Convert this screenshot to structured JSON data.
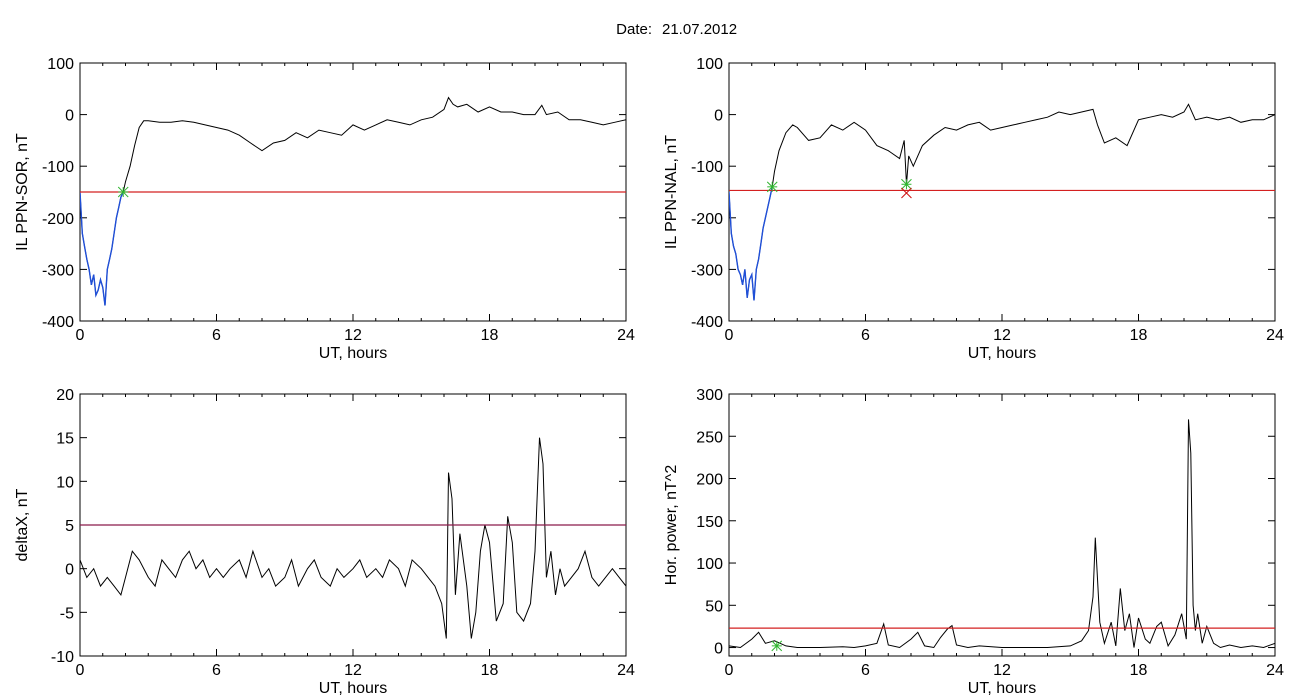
{
  "figure": {
    "date_label": "Date:",
    "date_value": "21.07.2012"
  },
  "colors": {
    "trace": "#000000",
    "highlight": "#1f4fd8",
    "threshold": "#d42020",
    "threshold_purple": "#8b1a4a",
    "marker_green": "#2fb52f",
    "marker_red": "#cc1111"
  },
  "chart_data": [
    {
      "id": "sor",
      "type": "line",
      "xlabel": "UT, hours",
      "ylabel": "IL PPN-SOR, nT",
      "xlim": [
        0,
        24
      ],
      "ylim": [
        -400,
        100
      ],
      "xticks": [
        0,
        6,
        12,
        18,
        24
      ],
      "yticks": [
        -400,
        -300,
        -200,
        -100,
        0,
        100
      ],
      "threshold": -150,
      "threshold_color": "red",
      "highlight_range": [
        0,
        1.9
      ],
      "markers": [
        {
          "x": 1.9,
          "y": -150,
          "shape": "asterisk",
          "color": "green"
        }
      ],
      "series": [
        {
          "x": [
            0.0,
            0.1,
            0.2,
            0.3,
            0.4,
            0.5,
            0.6,
            0.7,
            0.8,
            0.9,
            1.0,
            1.1,
            1.2,
            1.3,
            1.4,
            1.5,
            1.6,
            1.7,
            1.8,
            1.9,
            2.0,
            2.2,
            2.4,
            2.6,
            2.8,
            3.0,
            3.5,
            4.0,
            4.5,
            5.0,
            5.5,
            6.0,
            6.5,
            7.0,
            7.5,
            8.0,
            8.5,
            9.0,
            9.5,
            10.0,
            10.5,
            11.0,
            11.5,
            12.0,
            12.5,
            13.0,
            13.5,
            14.0,
            14.5,
            15.0,
            15.5,
            16.0,
            16.2,
            16.4,
            16.6,
            17.0,
            17.5,
            18.0,
            18.5,
            19.0,
            19.5,
            20.0,
            20.3,
            20.5,
            21.0,
            21.5,
            22.0,
            22.5,
            23.0,
            23.5,
            24.0
          ],
          "y": [
            -150,
            -230,
            -255,
            -280,
            -300,
            -330,
            -310,
            -350,
            -340,
            -320,
            -335,
            -370,
            -300,
            -280,
            -260,
            -230,
            -200,
            -180,
            -160,
            -150,
            -130,
            -100,
            -60,
            -25,
            -12,
            -12,
            -15,
            -15,
            -12,
            -15,
            -20,
            -25,
            -30,
            -40,
            -55,
            -70,
            -55,
            -50,
            -35,
            -45,
            -30,
            -35,
            -40,
            -20,
            -30,
            -20,
            -10,
            -15,
            -20,
            -10,
            -5,
            10,
            33,
            20,
            15,
            20,
            5,
            15,
            5,
            5,
            0,
            0,
            18,
            0,
            5,
            -10,
            -10,
            -15,
            -20,
            -15,
            -10
          ]
        }
      ]
    },
    {
      "id": "nal",
      "type": "line",
      "xlabel": "UT, hours",
      "ylabel": "IL PPN-NAL, nT",
      "xlim": [
        0,
        24
      ],
      "ylim": [
        -400,
        100
      ],
      "xticks": [
        0,
        6,
        12,
        18,
        24
      ],
      "yticks": [
        -400,
        -300,
        -200,
        -100,
        0,
        100
      ],
      "threshold": -147,
      "threshold_color": "red",
      "highlight_range": [
        0,
        1.9
      ],
      "markers": [
        {
          "x": 1.9,
          "y": -140,
          "shape": "asterisk",
          "color": "green"
        },
        {
          "x": 7.8,
          "y": -135,
          "shape": "asterisk",
          "color": "green"
        },
        {
          "x": 7.8,
          "y": -152,
          "shape": "cross",
          "color": "red"
        }
      ],
      "series": [
        {
          "x": [
            0.0,
            0.1,
            0.2,
            0.3,
            0.4,
            0.5,
            0.6,
            0.7,
            0.8,
            0.9,
            1.0,
            1.1,
            1.2,
            1.3,
            1.4,
            1.5,
            1.6,
            1.7,
            1.8,
            1.9,
            2.0,
            2.2,
            2.5,
            2.8,
            3.0,
            3.5,
            4.0,
            4.5,
            5.0,
            5.5,
            6.0,
            6.5,
            7.0,
            7.5,
            7.7,
            7.8,
            7.9,
            8.1,
            8.5,
            9.0,
            9.5,
            10.0,
            10.5,
            11.0,
            11.5,
            12.0,
            12.5,
            13.0,
            13.5,
            14.0,
            14.5,
            15.0,
            15.5,
            16.0,
            16.2,
            16.5,
            17.0,
            17.5,
            18.0,
            18.5,
            19.0,
            19.5,
            20.0,
            20.2,
            20.5,
            21.0,
            21.5,
            22.0,
            22.5,
            23.0,
            23.5,
            24.0
          ],
          "y": [
            -150,
            -230,
            -255,
            -270,
            -300,
            -310,
            -330,
            -300,
            -355,
            -320,
            -310,
            -360,
            -300,
            -280,
            -250,
            -220,
            -200,
            -180,
            -160,
            -140,
            -110,
            -70,
            -35,
            -20,
            -25,
            -50,
            -45,
            -20,
            -30,
            -15,
            -30,
            -60,
            -70,
            -85,
            -50,
            -135,
            -80,
            -100,
            -60,
            -40,
            -25,
            -30,
            -20,
            -15,
            -30,
            -25,
            -20,
            -15,
            -10,
            -5,
            5,
            0,
            5,
            10,
            -20,
            -55,
            -45,
            -60,
            -10,
            -5,
            0,
            -5,
            5,
            20,
            -10,
            -5,
            -10,
            -5,
            -15,
            -10,
            -10,
            0
          ]
        }
      ]
    },
    {
      "id": "deltax",
      "type": "line",
      "xlabel": "UT, hours",
      "ylabel": "deltaX, nT",
      "xlim": [
        0,
        24
      ],
      "ylim": [
        -10,
        20
      ],
      "xticks": [
        0,
        6,
        12,
        18,
        24
      ],
      "yticks": [
        -10,
        -5,
        0,
        5,
        10,
        15,
        20
      ],
      "threshold": 5,
      "threshold_color": "purple",
      "highlight_range": null,
      "markers": [],
      "series": [
        {
          "x": [
            0.0,
            0.3,
            0.6,
            0.9,
            1.2,
            1.5,
            1.8,
            2.0,
            2.3,
            2.6,
            3.0,
            3.3,
            3.6,
            3.9,
            4.2,
            4.5,
            4.8,
            5.1,
            5.4,
            5.7,
            6.0,
            6.3,
            6.6,
            7.0,
            7.3,
            7.6,
            8.0,
            8.3,
            8.6,
            9.0,
            9.3,
            9.6,
            10.0,
            10.3,
            10.6,
            11.0,
            11.3,
            11.6,
            12.0,
            12.3,
            12.6,
            13.0,
            13.3,
            13.6,
            14.0,
            14.3,
            14.6,
            15.0,
            15.3,
            15.6,
            15.9,
            16.1,
            16.2,
            16.35,
            16.5,
            16.7,
            17.0,
            17.2,
            17.4,
            17.6,
            17.8,
            18.0,
            18.3,
            18.6,
            18.8,
            19.0,
            19.2,
            19.5,
            19.8,
            20.0,
            20.2,
            20.35,
            20.5,
            20.7,
            20.9,
            21.1,
            21.3,
            21.6,
            21.9,
            22.2,
            22.5,
            22.8,
            23.1,
            23.4,
            23.7,
            24.0
          ],
          "y": [
            1,
            -1,
            0,
            -2,
            -1,
            -2,
            -3,
            -1,
            2,
            1,
            -1,
            -2,
            1,
            0,
            -1,
            1,
            2,
            0,
            1,
            -1,
            0,
            -1,
            0,
            1,
            -1,
            2,
            -1,
            0,
            -2,
            -1,
            1,
            -2,
            0,
            1,
            -1,
            -2,
            0,
            -1,
            0,
            1,
            -1,
            0,
            -1,
            1,
            0,
            -2,
            1,
            0,
            -1,
            -2,
            -4,
            -8,
            11,
            8,
            -3,
            4,
            -2,
            -8,
            -5,
            2,
            5,
            3,
            -6,
            -4,
            6,
            3,
            -5,
            -6,
            -4,
            2,
            15,
            12,
            -1,
            2,
            -3,
            0,
            -2,
            -1,
            0,
            2,
            -1,
            -2,
            -1,
            0,
            -1,
            -2
          ]
        }
      ]
    },
    {
      "id": "power",
      "type": "line",
      "xlabel": "UT, hours",
      "ylabel": "Hor. power, nT^2",
      "xlim": [
        0,
        24
      ],
      "ylim": [
        -10,
        300
      ],
      "xticks": [
        0,
        6,
        12,
        18,
        24
      ],
      "yticks": [
        0,
        50,
        100,
        150,
        200,
        250,
        300
      ],
      "threshold": 23,
      "threshold_color": "red",
      "highlight_range": null,
      "markers": [
        {
          "x": 2.1,
          "y": 2,
          "shape": "asterisk",
          "color": "green"
        }
      ],
      "series": [
        {
          "x": [
            0.0,
            0.5,
            1.0,
            1.3,
            1.6,
            2.0,
            2.5,
            3.0,
            4.0,
            5.0,
            5.5,
            6.0,
            6.5,
            6.8,
            7.0,
            7.5,
            8.0,
            8.3,
            8.6,
            9.0,
            9.3,
            9.6,
            9.8,
            10.0,
            10.5,
            11.0,
            12.0,
            13.0,
            14.0,
            15.0,
            15.5,
            15.8,
            16.0,
            16.1,
            16.3,
            16.5,
            16.8,
            17.0,
            17.2,
            17.4,
            17.6,
            17.8,
            18.0,
            18.3,
            18.5,
            18.8,
            19.0,
            19.3,
            19.6,
            19.9,
            20.1,
            20.2,
            20.3,
            20.4,
            20.5,
            20.6,
            20.8,
            21.0,
            21.3,
            21.6,
            22.0,
            22.5,
            23.0,
            23.5,
            24.0
          ],
          "y": [
            2,
            0,
            10,
            18,
            5,
            8,
            2,
            0,
            0,
            1,
            0,
            2,
            5,
            28,
            3,
            0,
            10,
            18,
            2,
            0,
            12,
            22,
            26,
            3,
            0,
            2,
            0,
            0,
            0,
            2,
            8,
            20,
            60,
            130,
            30,
            5,
            30,
            2,
            70,
            20,
            40,
            0,
            35,
            10,
            5,
            25,
            30,
            2,
            15,
            40,
            10,
            270,
            230,
            50,
            20,
            40,
            5,
            25,
            5,
            0,
            3,
            0,
            2,
            0,
            5
          ]
        }
      ]
    }
  ]
}
